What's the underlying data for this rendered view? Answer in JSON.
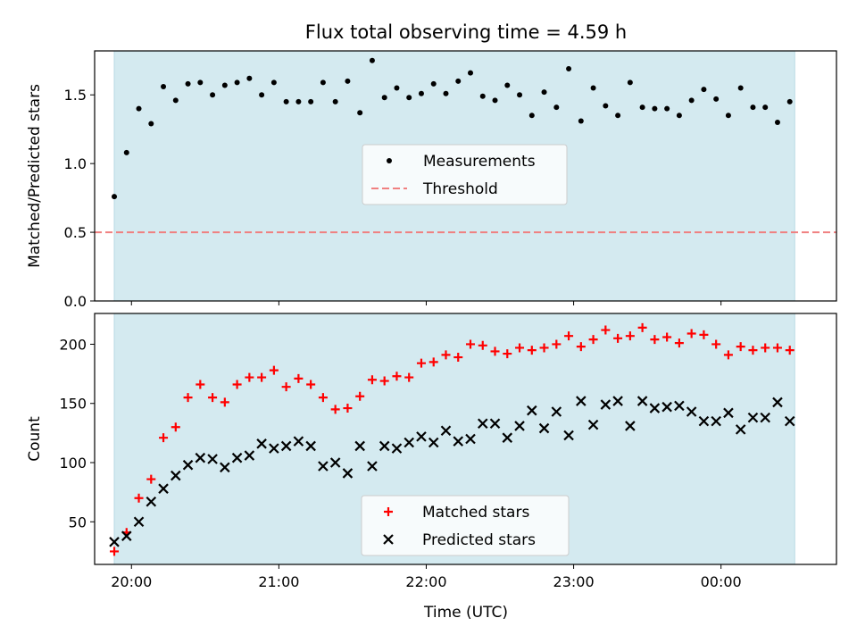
{
  "chart_data": {
    "title": "Flux total observing time = 4.59 h",
    "xlabel": "Time (UTC)",
    "x_tick_labels": [
      "20:00",
      "21:00",
      "22:00",
      "23:00",
      "00:00"
    ],
    "x_ticks": [
      "20:00",
      "21:00",
      "22:00",
      "23:00",
      "24:00"
    ],
    "xlim": [
      "19:45",
      "24:47"
    ],
    "shaded_span": [
      "19:53",
      "24:30"
    ],
    "shade_color": "#d4eaf0",
    "panels": [
      {
        "type": "scatter",
        "ylabel": "Matched/Predicted stars",
        "ylim": [
          0,
          1.82
        ],
        "y_ticks": [
          0.0,
          0.5,
          1.0,
          1.5
        ],
        "y_tick_labels": [
          "0.0",
          "0.5",
          "1.0",
          "1.5"
        ],
        "legend_position": "center",
        "legend": [
          "Measurements",
          "Threshold"
        ],
        "threshold": {
          "name": "Threshold",
          "value": 0.5,
          "color": "#f08080",
          "style": "dashed"
        },
        "series": [
          {
            "name": "Measurements",
            "marker": "dot",
            "color": "#000000",
            "points": [
              [
                "19:53",
                0.76
              ],
              [
                "19:58",
                1.08
              ],
              [
                "20:03",
                1.4
              ],
              [
                "20:08",
                1.29
              ],
              [
                "20:13",
                1.56
              ],
              [
                "20:18",
                1.46
              ],
              [
                "20:23",
                1.58
              ],
              [
                "20:28",
                1.59
              ],
              [
                "20:33",
                1.5
              ],
              [
                "20:38",
                1.57
              ],
              [
                "20:43",
                1.59
              ],
              [
                "20:48",
                1.62
              ],
              [
                "20:53",
                1.5
              ],
              [
                "20:58",
                1.59
              ],
              [
                "21:03",
                1.45
              ],
              [
                "21:08",
                1.45
              ],
              [
                "21:13",
                1.45
              ],
              [
                "21:18",
                1.59
              ],
              [
                "21:23",
                1.45
              ],
              [
                "21:28",
                1.6
              ],
              [
                "21:33",
                1.37
              ],
              [
                "21:38",
                1.75
              ],
              [
                "21:43",
                1.48
              ],
              [
                "21:48",
                1.55
              ],
              [
                "21:53",
                1.48
              ],
              [
                "21:58",
                1.51
              ],
              [
                "22:03",
                1.58
              ],
              [
                "22:08",
                1.51
              ],
              [
                "22:13",
                1.6
              ],
              [
                "22:18",
                1.66
              ],
              [
                "22:23",
                1.49
              ],
              [
                "22:28",
                1.46
              ],
              [
                "22:33",
                1.57
              ],
              [
                "22:38",
                1.5
              ],
              [
                "22:43",
                1.35
              ],
              [
                "22:48",
                1.52
              ],
              [
                "22:53",
                1.41
              ],
              [
                "22:58",
                1.69
              ],
              [
                "23:03",
                1.31
              ],
              [
                "23:08",
                1.55
              ],
              [
                "23:13",
                1.42
              ],
              [
                "23:18",
                1.35
              ],
              [
                "23:23",
                1.59
              ],
              [
                "23:28",
                1.41
              ],
              [
                "23:33",
                1.4
              ],
              [
                "23:38",
                1.4
              ],
              [
                "23:43",
                1.35
              ],
              [
                "23:48",
                1.46
              ],
              [
                "23:53",
                1.54
              ],
              [
                "23:58",
                1.47
              ],
              [
                "24:03",
                1.35
              ],
              [
                "24:08",
                1.55
              ],
              [
                "24:13",
                1.41
              ],
              [
                "24:18",
                1.41
              ],
              [
                "24:23",
                1.3
              ],
              [
                "24:28",
                1.45
              ]
            ]
          }
        ]
      },
      {
        "type": "scatter",
        "ylabel": "Count",
        "ylim": [
          14,
          226
        ],
        "y_ticks": [
          50,
          100,
          150,
          200
        ],
        "y_tick_labels": [
          "50",
          "100",
          "150",
          "200"
        ],
        "legend_position": "bottom-center",
        "legend": [
          "Matched stars",
          "Predicted stars"
        ],
        "series": [
          {
            "name": "Matched stars",
            "marker": "plus",
            "color": "#ff0000",
            "points": [
              [
                "19:53",
                25
              ],
              [
                "19:58",
                41
              ],
              [
                "20:03",
                70
              ],
              [
                "20:08",
                86
              ],
              [
                "20:13",
                121
              ],
              [
                "20:18",
                130
              ],
              [
                "20:23",
                155
              ],
              [
                "20:28",
                166
              ],
              [
                "20:33",
                155
              ],
              [
                "20:38",
                151
              ],
              [
                "20:43",
                166
              ],
              [
                "20:48",
                172
              ],
              [
                "20:53",
                172
              ],
              [
                "20:58",
                178
              ],
              [
                "21:03",
                164
              ],
              [
                "21:08",
                171
              ],
              [
                "21:13",
                166
              ],
              [
                "21:18",
                155
              ],
              [
                "21:23",
                145
              ],
              [
                "21:28",
                146
              ],
              [
                "21:33",
                156
              ],
              [
                "21:38",
                170
              ],
              [
                "21:43",
                169
              ],
              [
                "21:48",
                173
              ],
              [
                "21:53",
                172
              ],
              [
                "21:58",
                184
              ],
              [
                "22:03",
                185
              ],
              [
                "22:08",
                191
              ],
              [
                "22:13",
                189
              ],
              [
                "22:18",
                200
              ],
              [
                "22:23",
                199
              ],
              [
                "22:28",
                194
              ],
              [
                "22:33",
                192
              ],
              [
                "22:38",
                197
              ],
              [
                "22:43",
                195
              ],
              [
                "22:48",
                197
              ],
              [
                "22:53",
                200
              ],
              [
                "22:58",
                207
              ],
              [
                "23:03",
                198
              ],
              [
                "23:08",
                204
              ],
              [
                "23:13",
                212
              ],
              [
                "23:18",
                205
              ],
              [
                "23:23",
                207
              ],
              [
                "23:28",
                214
              ],
              [
                "23:33",
                204
              ],
              [
                "23:38",
                206
              ],
              [
                "23:43",
                201
              ],
              [
                "23:48",
                209
              ],
              [
                "23:53",
                208
              ],
              [
                "23:58",
                200
              ],
              [
                "24:03",
                191
              ],
              [
                "24:08",
                198
              ],
              [
                "24:13",
                195
              ],
              [
                "24:18",
                197
              ],
              [
                "24:23",
                197
              ],
              [
                "24:28",
                195
              ]
            ]
          },
          {
            "name": "Predicted stars",
            "marker": "x",
            "color": "#000000",
            "points": [
              [
                "19:53",
                33
              ],
              [
                "19:58",
                38
              ],
              [
                "20:03",
                50
              ],
              [
                "20:08",
                67
              ],
              [
                "20:13",
                78
              ],
              [
                "20:18",
                89
              ],
              [
                "20:23",
                98
              ],
              [
                "20:28",
                104
              ],
              [
                "20:33",
                103
              ],
              [
                "20:38",
                96
              ],
              [
                "20:43",
                104
              ],
              [
                "20:48",
                106
              ],
              [
                "20:53",
                116
              ],
              [
                "20:58",
                112
              ],
              [
                "21:03",
                114
              ],
              [
                "21:08",
                118
              ],
              [
                "21:13",
                114
              ],
              [
                "21:18",
                97
              ],
              [
                "21:23",
                100
              ],
              [
                "21:28",
                91
              ],
              [
                "21:33",
                114
              ],
              [
                "21:38",
                97
              ],
              [
                "21:43",
                114
              ],
              [
                "21:48",
                112
              ],
              [
                "21:53",
                117
              ],
              [
                "21:58",
                122
              ],
              [
                "22:03",
                117
              ],
              [
                "22:08",
                127
              ],
              [
                "22:13",
                118
              ],
              [
                "22:18",
                120
              ],
              [
                "22:23",
                133
              ],
              [
                "22:28",
                133
              ],
              [
                "22:33",
                121
              ],
              [
                "22:38",
                131
              ],
              [
                "22:43",
                144
              ],
              [
                "22:48",
                129
              ],
              [
                "22:53",
                143
              ],
              [
                "22:58",
                123
              ],
              [
                "23:03",
                152
              ],
              [
                "23:08",
                132
              ],
              [
                "23:13",
                149
              ],
              [
                "23:18",
                152
              ],
              [
                "23:23",
                131
              ],
              [
                "23:28",
                152
              ],
              [
                "23:33",
                146
              ],
              [
                "23:38",
                147
              ],
              [
                "23:43",
                148
              ],
              [
                "23:48",
                143
              ],
              [
                "23:53",
                135
              ],
              [
                "23:58",
                135
              ],
              [
                "24:03",
                142
              ],
              [
                "24:08",
                128
              ],
              [
                "24:13",
                138
              ],
              [
                "24:18",
                138
              ],
              [
                "24:23",
                151
              ],
              [
                "24:28",
                135
              ]
            ]
          }
        ]
      }
    ]
  }
}
